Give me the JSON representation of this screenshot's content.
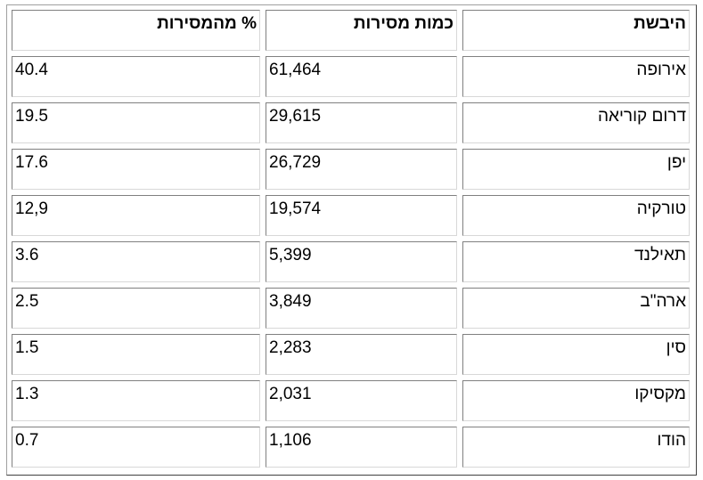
{
  "table": {
    "headers": {
      "continent": "היבשת",
      "quantity": "כמות מסירות",
      "percent": "% מהמסירות"
    },
    "rows": [
      {
        "continent": "אירופה",
        "quantity": "61,464",
        "percent": "40.4"
      },
      {
        "continent": "דרום קוריאה",
        "quantity": "29,615",
        "percent": "19.5"
      },
      {
        "continent": "יפן",
        "quantity": "26,729",
        "percent": "17.6"
      },
      {
        "continent": "טורקיה",
        "quantity": "19,574",
        "percent": "12,9"
      },
      {
        "continent": "תאילנד",
        "quantity": "5,399",
        "percent": "3.6"
      },
      {
        "continent": "ארה\"ב",
        "quantity": "3,849",
        "percent": "2.5"
      },
      {
        "continent": "סין",
        "quantity": "2,283",
        "percent": "1.5"
      },
      {
        "continent": "מקסיקו",
        "quantity": "2,031",
        "percent": "1.3"
      },
      {
        "continent": "הודו",
        "quantity": "1,106",
        "percent": "0.7"
      }
    ]
  }
}
